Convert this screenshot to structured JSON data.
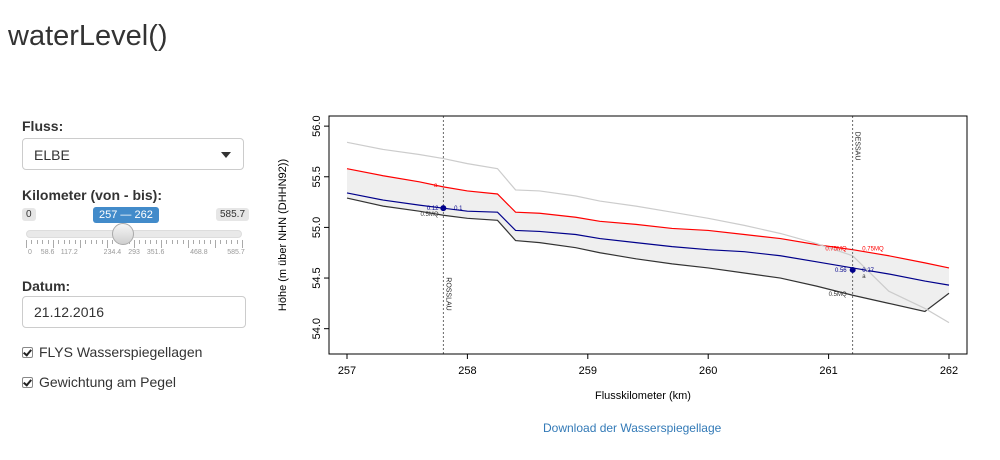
{
  "app": {
    "title": "waterLevel()"
  },
  "sidebar": {
    "river_label": "Fluss:",
    "river_value": "ELBE",
    "km_label": "Kilometer (von - bis):",
    "km_min": "0",
    "km_max": "585.7",
    "km_selected": "257 — 262",
    "km_ticks": [
      "0",
      "58.6",
      "117.2",
      "234.4",
      "293",
      "351.6",
      "468.8",
      "585.7"
    ],
    "date_label": "Datum:",
    "date_value": "21.12.2016",
    "check1_label": "FLYS Wasserspiegellagen",
    "check2_label": "Gewichtung am Pegel"
  },
  "download_label": "Download der Wasserspiegellage",
  "chart_data": {
    "type": "line",
    "xlabel": "Flusskilometer (km)",
    "ylabel": "Höhe (m über NHN (DHHN92))",
    "xlim": [
      257,
      262
    ],
    "ylim": [
      53.75,
      56.1
    ],
    "x_ticks": [
      "257",
      "258",
      "259",
      "260",
      "261",
      "262"
    ],
    "y_ticks": [
      "54.0",
      "54.5",
      "55.0",
      "55.5",
      "56.0"
    ],
    "gauges": [
      {
        "name": "ROSSLAU",
        "km": 257.8
      },
      {
        "name": "DESSAU",
        "km": 261.2
      }
    ],
    "series": [
      {
        "color": "#ff0000",
        "x": [
          257,
          257.3,
          257.6,
          257.8,
          258,
          258.25,
          258.4,
          258.6,
          258.9,
          259.1,
          259.4,
          259.7,
          260,
          260.3,
          260.6,
          260.9,
          261.2,
          261.5,
          261.8,
          262
        ],
        "y": [
          55.58,
          55.51,
          55.45,
          55.4,
          55.36,
          55.33,
          55.15,
          55.14,
          55.1,
          55.06,
          55.03,
          54.99,
          54.97,
          54.93,
          54.89,
          54.83,
          54.78,
          54.72,
          54.65,
          54.6
        ]
      },
      {
        "color": "#00008b",
        "x": [
          257,
          257.3,
          257.6,
          257.8,
          258,
          258.25,
          258.4,
          258.6,
          258.9,
          259.1,
          259.4,
          259.7,
          260,
          260.3,
          260.6,
          260.9,
          261.2,
          261.5,
          261.8,
          262
        ],
        "y": [
          55.34,
          55.27,
          55.22,
          55.19,
          55.16,
          55.15,
          54.97,
          54.96,
          54.93,
          54.89,
          54.85,
          54.81,
          54.78,
          54.76,
          54.72,
          54.66,
          54.6,
          54.54,
          54.47,
          54.43
        ]
      },
      {
        "color": "#333333",
        "x": [
          257,
          257.3,
          257.6,
          257.8,
          258,
          258.25,
          258.4,
          258.6,
          258.9,
          259.1,
          259.4,
          259.7,
          260,
          260.3,
          260.6,
          260.9,
          261.2,
          261.5,
          261.8,
          262
        ],
        "y": [
          55.29,
          55.21,
          55.16,
          55.12,
          55.09,
          55.07,
          54.87,
          54.85,
          54.8,
          54.75,
          54.69,
          54.64,
          54.6,
          54.55,
          54.5,
          54.42,
          54.33,
          54.25,
          54.17,
          54.35
        ]
      },
      {
        "color": "#cccccc",
        "x": [
          257,
          257.3,
          257.6,
          257.8,
          258,
          258.25,
          258.4,
          258.6,
          258.9,
          259.1,
          259.4,
          259.7,
          260,
          260.3,
          260.6,
          260.9,
          261.2,
          261.5,
          261.8,
          262
        ],
        "y": [
          55.84,
          55.77,
          55.72,
          55.68,
          55.63,
          55.58,
          55.37,
          55.36,
          55.31,
          55.26,
          55.21,
          55.15,
          55.09,
          55.02,
          54.94,
          54.84,
          54.72,
          54.37,
          54.2,
          54.06
        ]
      }
    ],
    "points": [
      {
        "x": 257.8,
        "y": 55.19
      },
      {
        "x": 261.2,
        "y": 54.58
      }
    ],
    "annotations": [
      {
        "text": "a",
        "x": 257.75,
        "y": 55.42,
        "color": "#ff0000"
      },
      {
        "text": "0.12",
        "x": 257.76,
        "y": 55.19,
        "color": "#00008b"
      },
      {
        "text": "0.1",
        "x": 257.89,
        "y": 55.19,
        "color": "#00008b"
      },
      {
        "text": "0.5MQ",
        "x": 257.76,
        "y": 55.13,
        "color": "#333333"
      },
      {
        "text": "0.75MQ",
        "x": 261.15,
        "y": 54.79,
        "color": "#ff0000"
      },
      {
        "text": "0.75MQ",
        "x": 261.28,
        "y": 54.79,
        "color": "#ff0000"
      },
      {
        "text": "0.56",
        "x": 261.15,
        "y": 54.58,
        "color": "#00008b"
      },
      {
        "text": "0.27",
        "x": 261.28,
        "y": 54.58,
        "color": "#00008b"
      },
      {
        "text": "a",
        "x": 261.28,
        "y": 54.52,
        "color": "#333333"
      },
      {
        "text": "0.5MQ",
        "x": 261.15,
        "y": 54.34,
        "color": "#333333"
      }
    ]
  }
}
